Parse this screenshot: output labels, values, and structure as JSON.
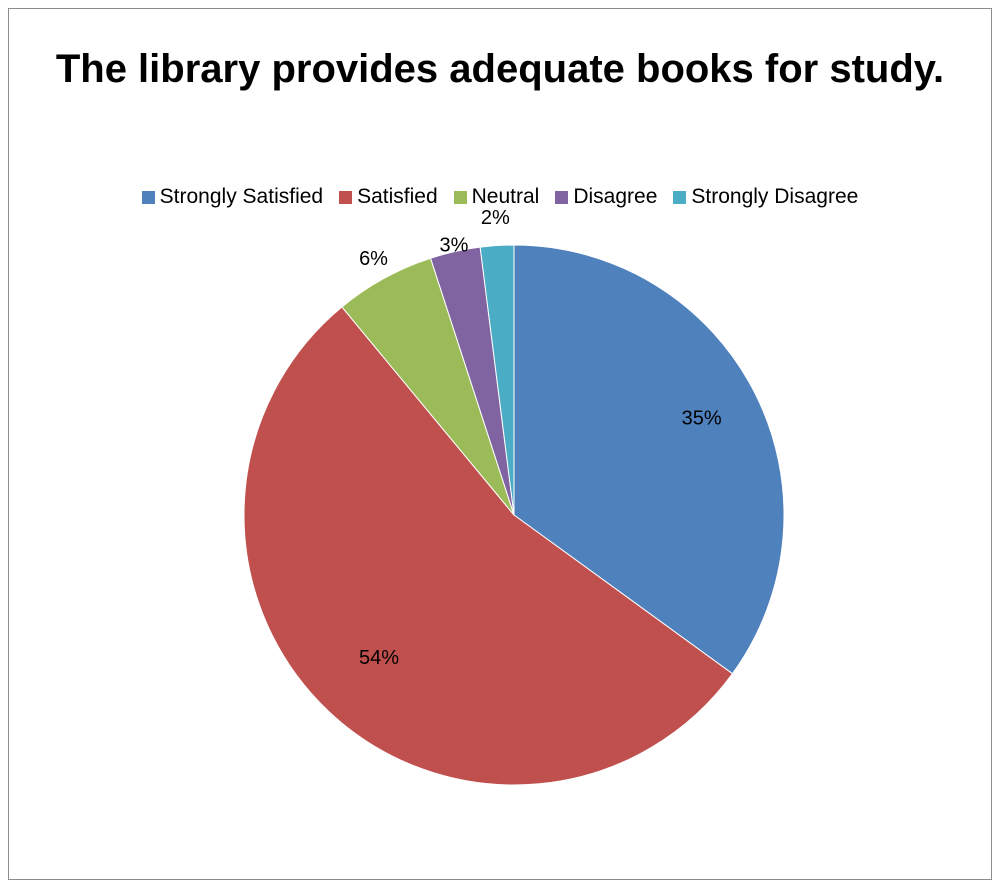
{
  "chart_data": {
    "type": "pie",
    "title": "The library provides adequate books for study.",
    "legend_position": "top",
    "slices": [
      {
        "name": "Strongly Satisfied",
        "value": 35,
        "label": "35%",
        "color": "#4F81BD"
      },
      {
        "name": "Satisfied",
        "value": 54,
        "label": "54%",
        "color": "#C0504D"
      },
      {
        "name": "Neutral",
        "value": 6,
        "label": "6%",
        "color": "#9BBB59"
      },
      {
        "name": "Disagree",
        "value": 3,
        "label": "3%",
        "color": "#8064A2"
      },
      {
        "name": "Strongly Disagree",
        "value": 2,
        "label": "2%",
        "color": "#4BACC6"
      }
    ]
  }
}
